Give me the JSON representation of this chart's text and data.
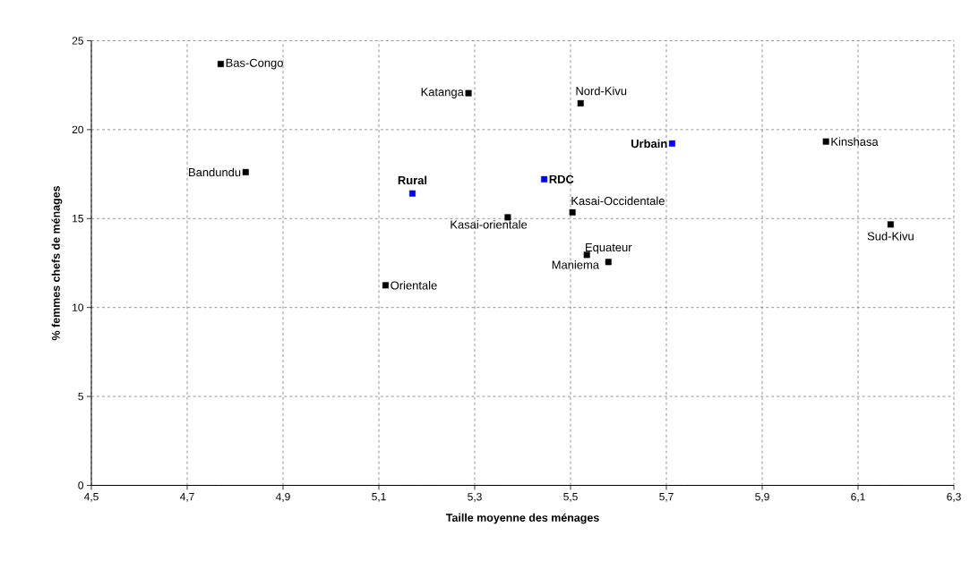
{
  "chart_data": {
    "type": "scatter",
    "xlabel": "Taille moyenne des ménages",
    "ylabel": "% femmes chefs de ménages",
    "series": [
      {
        "color": "#000000",
        "x": [
          4.77,
          5.287,
          5.521,
          4.822,
          6.033,
          5.504,
          5.369,
          5.579,
          5.534,
          6.168,
          5.114
        ],
        "values": [
          23.69,
          22.05,
          21.48,
          17.61,
          19.33,
          15.35,
          15.07,
          12.56,
          12.96,
          14.67,
          11.25
        ]
      },
      {
        "color": "#0000ff",
        "x": [
          5.712,
          5.17,
          5.445
        ],
        "values": [
          19.22,
          16.41,
          17.21
        ]
      }
    ],
    "xlim": [
      4.5,
      6.3
    ],
    "xticks": [
      {
        "value": 4.5,
        "label": "4,5"
      },
      {
        "value": 4.7,
        "label": "4,7"
      },
      {
        "value": 4.9,
        "label": "4,9"
      },
      {
        "value": 5.1,
        "label": "5,1"
      },
      {
        "value": 5.3,
        "label": "5,3"
      },
      {
        "value": 5.5,
        "label": "5,5"
      },
      {
        "value": 5.7,
        "label": "5,7"
      },
      {
        "value": 5.9,
        "label": "5,9"
      },
      {
        "value": 6.1,
        "label": "6,1"
      },
      {
        "value": 6.3,
        "label": "6,3"
      }
    ],
    "ylim": [
      0,
      25
    ],
    "yticks": [
      0,
      5,
      10,
      15,
      20,
      25
    ],
    "grid": true,
    "marker": "square",
    "annotations": [
      {
        "text": "Bas-Congo",
        "x": 4.77,
        "y": 23.69
      },
      {
        "text": "Katanga",
        "x": 5.287,
        "y": 22.05
      },
      {
        "text": "Nord-Kivu",
        "x": 5.521,
        "y": 21.48
      },
      {
        "text": "Bandundu",
        "x": 4.822,
        "y": 17.61
      },
      {
        "text": "Urbain",
        "x": 5.712,
        "y": 19.22
      },
      {
        "text": "Kinshasa",
        "x": 6.033,
        "y": 19.33
      },
      {
        "text": "Rural",
        "x": 5.17,
        "y": 16.41
      },
      {
        "text": "RDC",
        "x": 5.445,
        "y": 17.21
      },
      {
        "text": "Kasai-Occidentale",
        "x": 5.504,
        "y": 15.35
      },
      {
        "text": "Kasai-orientale",
        "x": 5.369,
        "y": 15.07
      },
      {
        "text": "Equateur",
        "x": 5.579,
        "y": 12.56
      },
      {
        "text": "Maniema",
        "x": 5.534,
        "y": 12.96
      },
      {
        "text": "Sud-Kivu",
        "x": 6.168,
        "y": 14.67
      },
      {
        "text": "Orientale",
        "x": 5.114,
        "y": 11.25
      }
    ]
  }
}
